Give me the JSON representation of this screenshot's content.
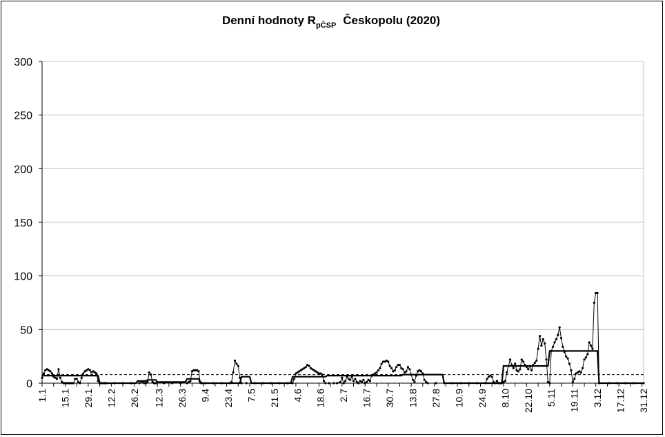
{
  "chart_data": {
    "type": "line",
    "title": {
      "main": "Denní hodnoty R",
      "subscript": "pČSP",
      "rest": "Českopolu (2020)"
    },
    "ylim": [
      0,
      300
    ],
    "y_ticks": [
      0,
      50,
      100,
      150,
      200,
      250,
      300
    ],
    "x_ticks": [
      "1.1",
      "15.1",
      "29.1",
      "12.2",
      "26.2",
      "12.3",
      "26.3",
      "9.4",
      "23.4",
      "7.5",
      "21.5",
      "4.6",
      "18.6",
      "2.7",
      "16.7",
      "30.7",
      "13.8",
      "27.8",
      "10.9",
      "24.9",
      "8.10",
      "22.10",
      "5.11",
      "19.11",
      "3.12",
      "17.12",
      "31.12"
    ],
    "x_tick_day_of_year": [
      1,
      15,
      29,
      43,
      57,
      72,
      86,
      100,
      114,
      128,
      142,
      156,
      170,
      184,
      198,
      212,
      226,
      240,
      254,
      268,
      282,
      296,
      310,
      324,
      338,
      352,
      366
    ],
    "xlim_days": [
      1,
      366
    ],
    "grid": "horizontal",
    "legend": "none",
    "colors": {
      "line": "#000000",
      "grid": "#c0c0c0",
      "reference": "#000000"
    },
    "series": [
      {
        "style": "dotted-thin-line",
        "points": [
          [
            1,
            5
          ],
          [
            2,
            9
          ],
          [
            3,
            12
          ],
          [
            4,
            13
          ],
          [
            5,
            12
          ],
          [
            6,
            11
          ],
          [
            7,
            9
          ],
          [
            8,
            6
          ],
          [
            9,
            5
          ],
          [
            10,
            4
          ],
          [
            11,
            13
          ],
          [
            12,
            5
          ],
          [
            13,
            1
          ],
          [
            14,
            0
          ],
          [
            15,
            0
          ],
          [
            16,
            0
          ],
          [
            17,
            0
          ],
          [
            18,
            0
          ],
          [
            19,
            0
          ],
          [
            20,
            0
          ],
          [
            21,
            4
          ],
          [
            22,
            4
          ],
          [
            23,
            1
          ],
          [
            24,
            0
          ],
          [
            25,
            5
          ],
          [
            26,
            9
          ],
          [
            27,
            11
          ],
          [
            28,
            12
          ],
          [
            29,
            13
          ],
          [
            30,
            12
          ],
          [
            31,
            10
          ],
          [
            32,
            11
          ],
          [
            33,
            10
          ],
          [
            34,
            9
          ],
          [
            35,
            2
          ],
          [
            36,
            0
          ],
          [
            37,
            0
          ],
          [
            38,
            0
          ],
          [
            39,
            0
          ],
          [
            40,
            0
          ],
          [
            45,
            0
          ],
          [
            50,
            0
          ],
          [
            55,
            0
          ],
          [
            60,
            0
          ],
          [
            62,
            1
          ],
          [
            63,
            0
          ],
          [
            64,
            0
          ],
          [
            65,
            1
          ],
          [
            66,
            10
          ],
          [
            67,
            8
          ],
          [
            68,
            1
          ],
          [
            69,
            0
          ],
          [
            70,
            0
          ],
          [
            75,
            0
          ],
          [
            80,
            0
          ],
          [
            85,
            0
          ],
          [
            89,
            0
          ],
          [
            90,
            1
          ],
          [
            91,
            2
          ],
          [
            92,
            11
          ],
          [
            93,
            12
          ],
          [
            94,
            12
          ],
          [
            95,
            12
          ],
          [
            96,
            11
          ],
          [
            97,
            1
          ],
          [
            98,
            0
          ],
          [
            100,
            0
          ],
          [
            105,
            0
          ],
          [
            110,
            0
          ],
          [
            115,
            0
          ],
          [
            116,
            1
          ],
          [
            117,
            10
          ],
          [
            118,
            21
          ],
          [
            119,
            18
          ],
          [
            120,
            16
          ],
          [
            121,
            5
          ],
          [
            122,
            0
          ],
          [
            125,
            0
          ],
          [
            130,
            0
          ],
          [
            135,
            0
          ],
          [
            140,
            0
          ],
          [
            145,
            0
          ],
          [
            150,
            0
          ],
          [
            153,
            0
          ],
          [
            154,
            4
          ],
          [
            155,
            9
          ],
          [
            156,
            10
          ],
          [
            157,
            11
          ],
          [
            158,
            12
          ],
          [
            159,
            13
          ],
          [
            160,
            14
          ],
          [
            161,
            15
          ],
          [
            162,
            17
          ],
          [
            163,
            16
          ],
          [
            164,
            14
          ],
          [
            165,
            13
          ],
          [
            166,
            12
          ],
          [
            167,
            11
          ],
          [
            168,
            10
          ],
          [
            169,
            9
          ],
          [
            170,
            9
          ],
          [
            171,
            8
          ],
          [
            172,
            2
          ],
          [
            173,
            0
          ],
          [
            175,
            0
          ],
          [
            178,
            0
          ],
          [
            180,
            0
          ],
          [
            182,
            1
          ],
          [
            183,
            5
          ],
          [
            184,
            0
          ],
          [
            185,
            2
          ],
          [
            186,
            6
          ],
          [
            187,
            4
          ],
          [
            188,
            3
          ],
          [
            189,
            6
          ],
          [
            190,
            2
          ],
          [
            191,
            4
          ],
          [
            192,
            1
          ],
          [
            193,
            0
          ],
          [
            194,
            2
          ],
          [
            195,
            1
          ],
          [
            196,
            3
          ],
          [
            197,
            0
          ],
          [
            198,
            1
          ],
          [
            199,
            3
          ],
          [
            200,
            2
          ],
          [
            201,
            7
          ],
          [
            202,
            8
          ],
          [
            203,
            9
          ],
          [
            204,
            10
          ],
          [
            205,
            12
          ],
          [
            206,
            14
          ],
          [
            207,
            18
          ],
          [
            208,
            20
          ],
          [
            209,
            20
          ],
          [
            210,
            21
          ],
          [
            211,
            20
          ],
          [
            212,
            16
          ],
          [
            213,
            14
          ],
          [
            214,
            11
          ],
          [
            215,
            12
          ],
          [
            216,
            15
          ],
          [
            217,
            17
          ],
          [
            218,
            17
          ],
          [
            219,
            14
          ],
          [
            220,
            13
          ],
          [
            221,
            10
          ],
          [
            222,
            11
          ],
          [
            223,
            15
          ],
          [
            224,
            13
          ],
          [
            225,
            8
          ],
          [
            226,
            3
          ],
          [
            227,
            1
          ],
          [
            228,
            7
          ],
          [
            229,
            11
          ],
          [
            230,
            12
          ],
          [
            231,
            11
          ],
          [
            232,
            9
          ],
          [
            233,
            3
          ],
          [
            234,
            1
          ],
          [
            235,
            0
          ],
          [
            240,
            0
          ],
          [
            245,
            0
          ],
          [
            250,
            0
          ],
          [
            255,
            0
          ],
          [
            260,
            0
          ],
          [
            265,
            0
          ],
          [
            270,
            0
          ],
          [
            271,
            4
          ],
          [
            272,
            6
          ],
          [
            273,
            7
          ],
          [
            274,
            6
          ],
          [
            275,
            1
          ],
          [
            276,
            0
          ],
          [
            277,
            2
          ],
          [
            278,
            0
          ],
          [
            279,
            0
          ],
          [
            280,
            0
          ],
          [
            281,
            1
          ],
          [
            282,
            2
          ],
          [
            283,
            10
          ],
          [
            284,
            16
          ],
          [
            285,
            22
          ],
          [
            286,
            17
          ],
          [
            287,
            14
          ],
          [
            288,
            18
          ],
          [
            289,
            12
          ],
          [
            290,
            11
          ],
          [
            291,
            13
          ],
          [
            292,
            22
          ],
          [
            293,
            20
          ],
          [
            294,
            17
          ],
          [
            295,
            15
          ],
          [
            296,
            13
          ],
          [
            297,
            16
          ],
          [
            298,
            12
          ],
          [
            299,
            17
          ],
          [
            300,
            19
          ],
          [
            301,
            21
          ],
          [
            302,
            32
          ],
          [
            303,
            44
          ],
          [
            304,
            35
          ],
          [
            305,
            41
          ],
          [
            306,
            37
          ],
          [
            307,
            22
          ],
          [
            308,
            1
          ],
          [
            309,
            0
          ],
          [
            310,
            30
          ],
          [
            311,
            34
          ],
          [
            312,
            38
          ],
          [
            313,
            41
          ],
          [
            314,
            45
          ],
          [
            315,
            52
          ],
          [
            316,
            42
          ],
          [
            317,
            34
          ],
          [
            318,
            29
          ],
          [
            319,
            25
          ],
          [
            320,
            23
          ],
          [
            321,
            18
          ],
          [
            322,
            12
          ],
          [
            323,
            1
          ],
          [
            324,
            4
          ],
          [
            325,
            9
          ],
          [
            326,
            10
          ],
          [
            327,
            11
          ],
          [
            328,
            10
          ],
          [
            329,
            14
          ],
          [
            330,
            22
          ],
          [
            331,
            24
          ],
          [
            332,
            27
          ],
          [
            333,
            38
          ],
          [
            334,
            35
          ],
          [
            335,
            32
          ],
          [
            336,
            75
          ],
          [
            337,
            84
          ],
          [
            338,
            84
          ],
          [
            339,
            0
          ],
          [
            345,
            0
          ],
          [
            350,
            0
          ],
          [
            355,
            0
          ],
          [
            360,
            0
          ],
          [
            366,
            0
          ]
        ]
      },
      {
        "style": "thick-step-line",
        "points": [
          [
            1,
            7
          ],
          [
            35,
            7
          ],
          [
            36,
            0
          ],
          [
            58,
            0
          ],
          [
            59,
            2
          ],
          [
            64,
            2
          ],
          [
            65,
            3
          ],
          [
            70,
            3
          ],
          [
            71,
            1
          ],
          [
            88,
            1
          ],
          [
            89,
            4
          ],
          [
            96,
            4
          ],
          [
            97,
            0
          ],
          [
            121,
            0
          ],
          [
            122,
            6
          ],
          [
            127,
            6
          ],
          [
            128,
            0
          ],
          [
            152,
            0
          ],
          [
            153,
            6
          ],
          [
            173,
            6
          ],
          [
            174,
            7
          ],
          [
            219,
            7
          ],
          [
            220,
            8
          ],
          [
            244,
            8
          ],
          [
            245,
            0
          ],
          [
            280,
            0
          ],
          [
            281,
            16
          ],
          [
            308,
            16
          ],
          [
            309,
            30
          ],
          [
            338,
            30
          ],
          [
            339,
            0
          ],
          [
            366,
            0
          ]
        ]
      },
      {
        "style": "dashed-reference",
        "points": [
          [
            1,
            8
          ],
          [
            366,
            8
          ]
        ]
      }
    ]
  }
}
